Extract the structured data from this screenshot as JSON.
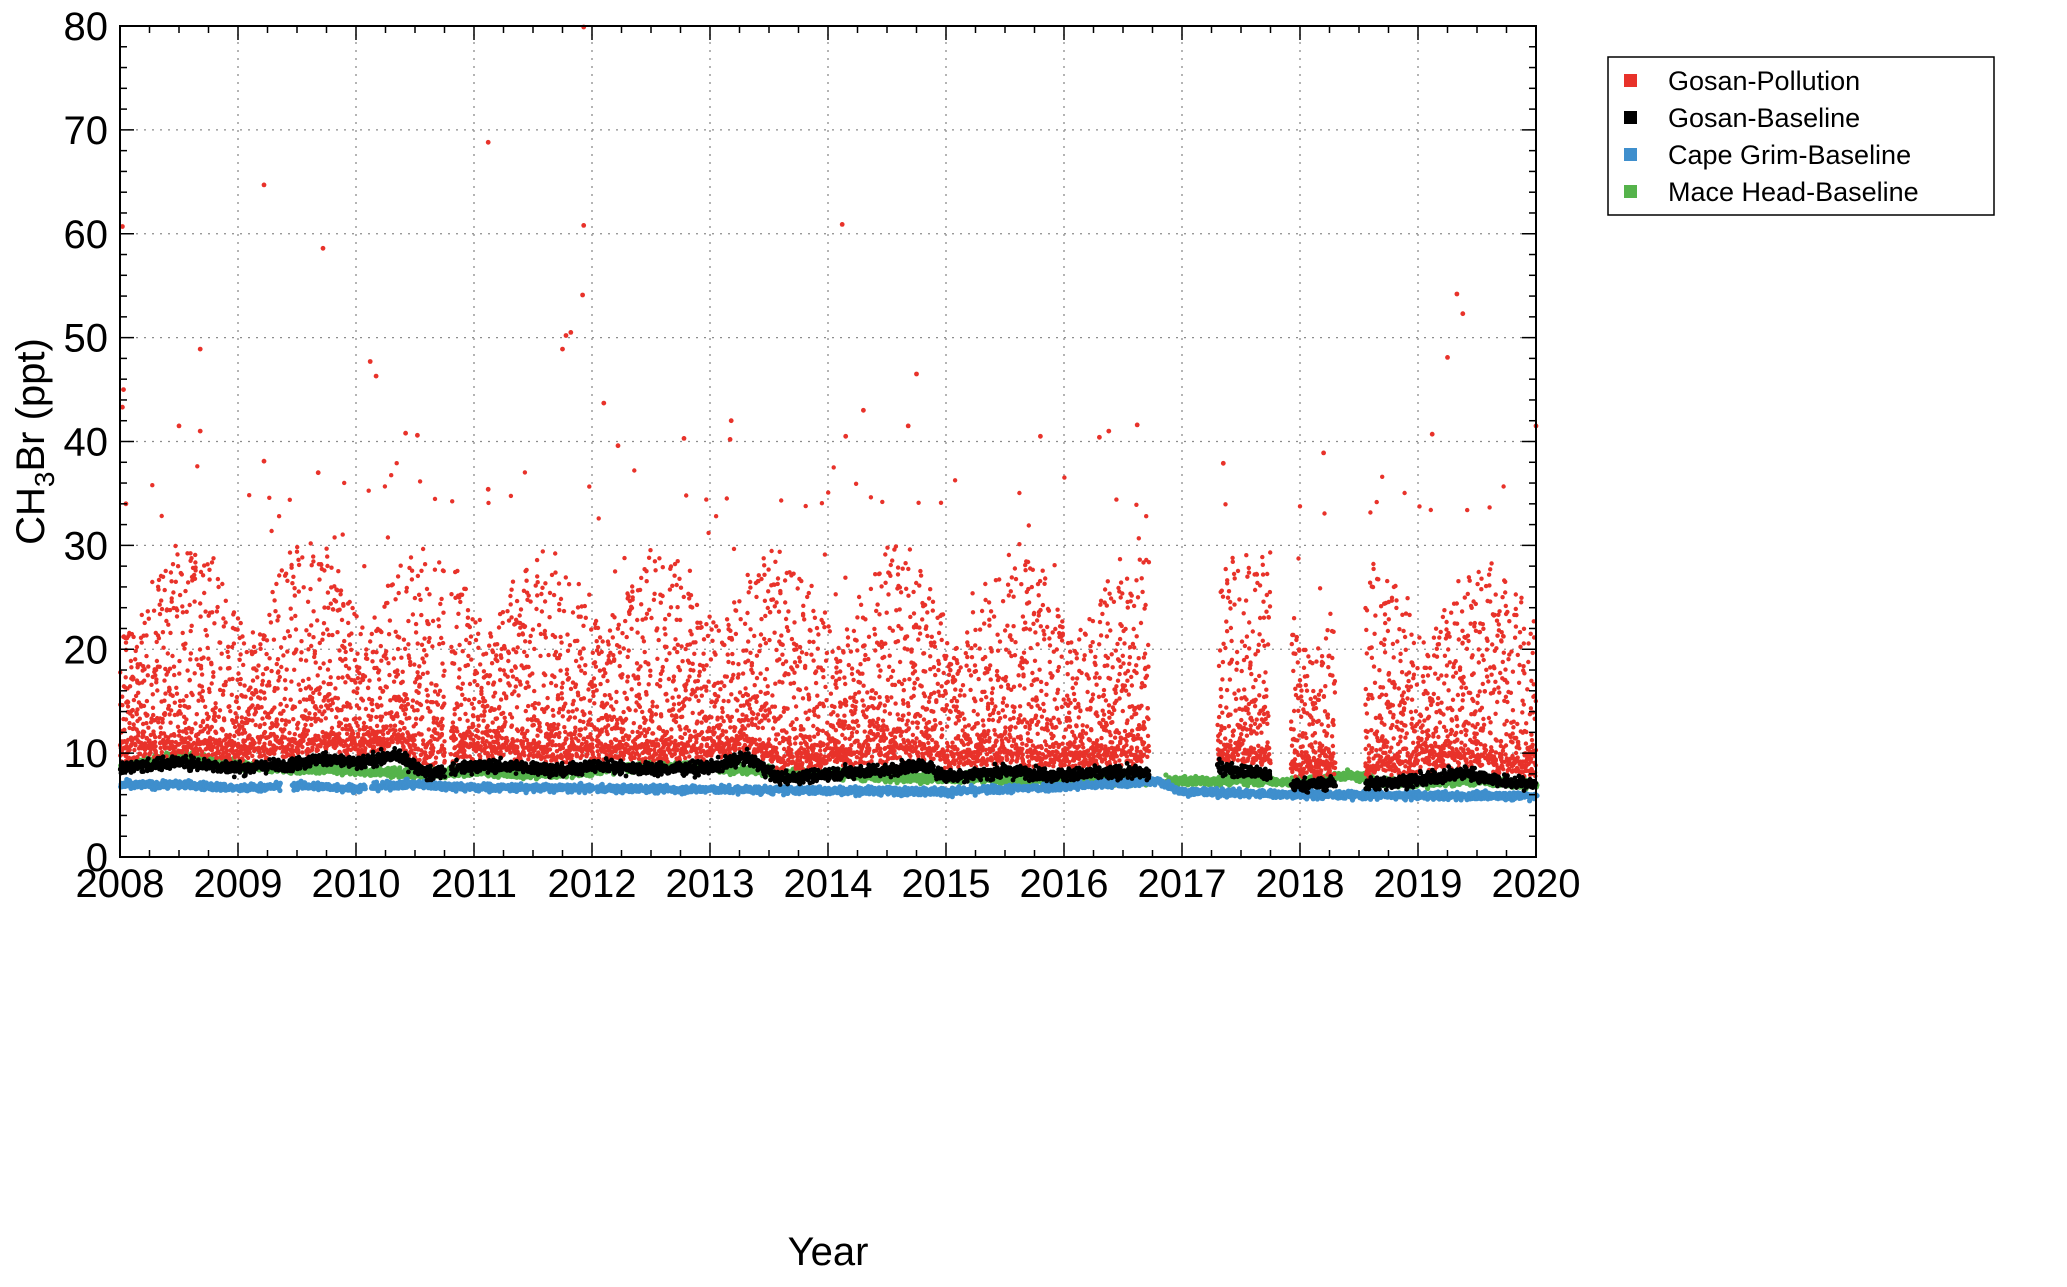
{
  "chart_data": {
    "type": "scatter",
    "title": "",
    "xlabel": "Year",
    "ylabel": {
      "main": "CH",
      "sub": "3",
      "rest": "Br (ppt)"
    },
    "xlim": [
      2008,
      2020
    ],
    "ylim": [
      0,
      80
    ],
    "xticks": [
      "2008",
      "2009",
      "2010",
      "2011",
      "2012",
      "2013",
      "2014",
      "2015",
      "2016",
      "2017",
      "2018",
      "2019",
      "2020"
    ],
    "yticks": [
      "0",
      "10",
      "20",
      "30",
      "40",
      "50",
      "60",
      "70",
      "80"
    ],
    "grid": true,
    "legend_position": "top-right",
    "series": [
      {
        "name": "Gosan-Pollution",
        "color": "#e8322a",
        "periods": [
          [
            2008.0,
            2010.75
          ],
          [
            2010.8,
            2016.72
          ],
          [
            2017.3,
            2017.75
          ],
          [
            2017.92,
            2018.3
          ],
          [
            2018.55,
            2020.0
          ]
        ],
        "extreme_points": [
          [
            2008.02,
            60.7
          ],
          [
            2008.03,
            45.0
          ],
          [
            2008.02,
            43.3
          ],
          [
            2008.05,
            34.0
          ],
          [
            2008.68,
            48.9
          ],
          [
            2008.5,
            41.5
          ],
          [
            2008.68,
            41.0
          ],
          [
            2009.22,
            64.7
          ],
          [
            2009.22,
            38.1
          ],
          [
            2009.72,
            58.6
          ],
          [
            2009.68,
            37.0
          ],
          [
            2010.12,
            47.7
          ],
          [
            2010.17,
            46.3
          ],
          [
            2010.42,
            40.8
          ],
          [
            2010.52,
            40.6
          ],
          [
            2011.12,
            68.8
          ],
          [
            2011.12,
            35.4
          ],
          [
            2011.82,
            50.5
          ],
          [
            2011.78,
            50.2
          ],
          [
            2011.75,
            48.9
          ],
          [
            2011.93,
            79.9
          ],
          [
            2011.93,
            60.8
          ],
          [
            2011.92,
            54.1
          ],
          [
            2012.1,
            43.7
          ],
          [
            2012.22,
            39.6
          ],
          [
            2012.78,
            40.3
          ],
          [
            2013.18,
            42.0
          ],
          [
            2013.17,
            40.2
          ],
          [
            2014.12,
            60.9
          ],
          [
            2014.3,
            43.0
          ],
          [
            2014.15,
            40.5
          ],
          [
            2014.68,
            41.5
          ],
          [
            2014.75,
            46.5
          ],
          [
            2015.8,
            40.5
          ],
          [
            2016.3,
            40.4
          ],
          [
            2016.38,
            41.0
          ],
          [
            2016.62,
            41.6
          ],
          [
            2017.35,
            37.9
          ],
          [
            2018.2,
            38.9
          ],
          [
            2019.12,
            40.7
          ],
          [
            2019.25,
            48.1
          ],
          [
            2019.33,
            54.2
          ],
          [
            2019.38,
            52.3
          ],
          [
            2020.0,
            41.5
          ]
        ]
      },
      {
        "name": "Gosan-Baseline",
        "color": "#000000",
        "baseline": [
          [
            2008.0,
            8.5
          ],
          [
            2008.5,
            9.2
          ],
          [
            2009.0,
            8.5
          ],
          [
            2009.5,
            9.0
          ],
          [
            2009.75,
            9.5
          ],
          [
            2010.0,
            9.0
          ],
          [
            2010.35,
            9.8
          ],
          [
            2010.6,
            8.0
          ],
          [
            2011.0,
            8.8
          ],
          [
            2011.5,
            8.6
          ],
          [
            2011.75,
            8.3
          ],
          [
            2012.0,
            8.8
          ],
          [
            2012.5,
            8.5
          ],
          [
            2013.0,
            8.6
          ],
          [
            2013.3,
            9.6
          ],
          [
            2013.6,
            7.5
          ],
          [
            2014.0,
            8.0
          ],
          [
            2014.5,
            8.4
          ],
          [
            2014.8,
            8.8
          ],
          [
            2015.0,
            7.8
          ],
          [
            2015.5,
            8.2
          ],
          [
            2016.0,
            7.9
          ],
          [
            2016.5,
            8.2
          ],
          [
            2016.72,
            8.0
          ],
          [
            2017.3,
            8.6
          ],
          [
            2017.75,
            7.9
          ],
          [
            2017.92,
            6.9
          ],
          [
            2018.3,
            7.1
          ],
          [
            2018.55,
            7.0
          ],
          [
            2019.0,
            7.4
          ],
          [
            2019.4,
            8.1
          ],
          [
            2019.75,
            7.2
          ],
          [
            2020.0,
            7.0
          ]
        ]
      },
      {
        "name": "Cape Grim-Baseline",
        "color": "#3f8fcd",
        "baseline": [
          [
            2008.0,
            6.9
          ],
          [
            2008.5,
            7.0
          ],
          [
            2009.0,
            6.6
          ],
          [
            2009.5,
            6.9
          ],
          [
            2010.0,
            6.6
          ],
          [
            2010.4,
            7.0
          ],
          [
            2011.0,
            6.7
          ],
          [
            2012.0,
            6.6
          ],
          [
            2013.0,
            6.5
          ],
          [
            2014.0,
            6.4
          ],
          [
            2015.0,
            6.3
          ],
          [
            2016.0,
            6.8
          ],
          [
            2016.8,
            7.3
          ],
          [
            2017.0,
            6.3
          ],
          [
            2018.0,
            6.0
          ],
          [
            2019.0,
            5.9
          ],
          [
            2020.0,
            5.9
          ]
        ]
      },
      {
        "name": "Mace Head-Baseline",
        "color": "#55b34b",
        "baseline": [
          [
            2008.0,
            8.6
          ],
          [
            2008.5,
            9.8
          ],
          [
            2009.0,
            8.9
          ],
          [
            2009.5,
            8.4
          ],
          [
            2010.0,
            8.3
          ],
          [
            2010.5,
            8.0
          ],
          [
            2011.0,
            8.2
          ],
          [
            2011.5,
            7.9
          ],
          [
            2012.0,
            8.3
          ],
          [
            2012.5,
            8.8
          ],
          [
            2013.0,
            8.6
          ],
          [
            2013.5,
            8.2
          ],
          [
            2014.0,
            8.0
          ],
          [
            2014.5,
            7.6
          ],
          [
            2015.0,
            7.6
          ],
          [
            2015.5,
            7.5
          ],
          [
            2016.0,
            7.4
          ],
          [
            2016.5,
            7.3
          ],
          [
            2017.0,
            7.3
          ],
          [
            2017.5,
            7.4
          ],
          [
            2018.0,
            7.2
          ],
          [
            2018.4,
            7.9
          ],
          [
            2018.7,
            7.2
          ],
          [
            2019.0,
            7.1
          ],
          [
            2019.5,
            7.4
          ],
          [
            2020.0,
            6.9
          ]
        ]
      }
    ]
  }
}
